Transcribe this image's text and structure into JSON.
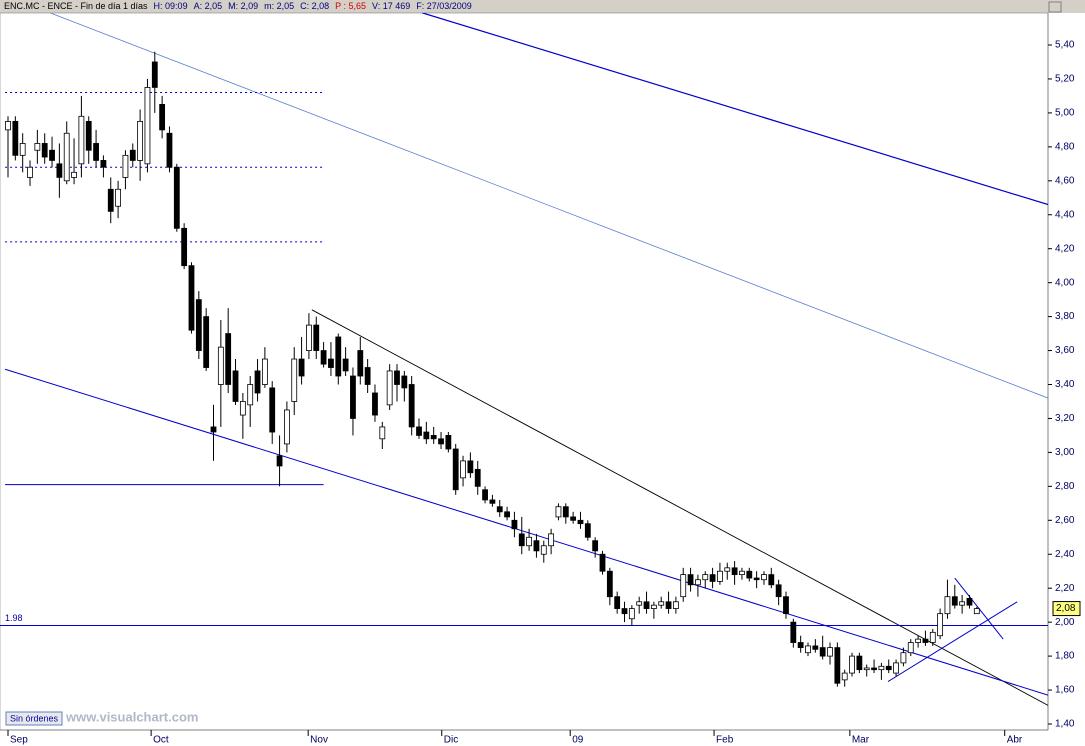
{
  "chart_data": {
    "type": "candlestick",
    "header": [
      {
        "text": "ENC.MC - ENCE - Fin de día 1 días",
        "color": "#000000"
      },
      {
        "text": "H: 09:09",
        "color": "#000080"
      },
      {
        "text": "A: 2,05",
        "color": "#000080"
      },
      {
        "text": "M: 2,09",
        "color": "#000080"
      },
      {
        "text": "m: 2,05",
        "color": "#000080"
      },
      {
        "text": "C: 2,08",
        "color": "#000080"
      },
      {
        "text": "P : 5,65",
        "color": "#d00000"
      },
      {
        "text": "V: 17 469",
        "color": "#000080"
      },
      {
        "text": "F: 27/03/2009",
        "color": "#000080"
      }
    ],
    "ylim": [
      1.3,
      5.5
    ],
    "yticks": [
      {
        "value": 1.4,
        "label": "1,40"
      },
      {
        "value": 1.6,
        "label": "1,60"
      },
      {
        "value": 1.8,
        "label": "1,80"
      },
      {
        "value": 2.0,
        "label": "2,00"
      },
      {
        "value": 2.2,
        "label": "2,20"
      },
      {
        "value": 2.4,
        "label": "2,40"
      },
      {
        "value": 2.6,
        "label": "2,60"
      },
      {
        "value": 2.8,
        "label": "2,80"
      },
      {
        "value": 3.0,
        "label": "3,00"
      },
      {
        "value": 3.2,
        "label": "3,20"
      },
      {
        "value": 3.4,
        "label": "3,40"
      },
      {
        "value": 3.6,
        "label": "3,60"
      },
      {
        "value": 3.8,
        "label": "3,80"
      },
      {
        "value": 4.0,
        "label": "4,00"
      },
      {
        "value": 4.2,
        "label": "4,20"
      },
      {
        "value": 4.4,
        "label": "4,40"
      },
      {
        "value": 4.6,
        "label": "4,60"
      },
      {
        "value": 4.8,
        "label": "4,80"
      },
      {
        "value": 5.0,
        "label": "5,00"
      },
      {
        "value": 5.2,
        "label": "5,20"
      },
      {
        "value": 5.4,
        "label": "5,40"
      }
    ],
    "xlim": [
      -1.09,
      141.7
    ],
    "xticks": [
      {
        "value": 0,
        "label": "Sep"
      },
      {
        "value": 19.5,
        "label": "Oct"
      },
      {
        "value": 40.9,
        "label": "Nov"
      },
      {
        "value": 59.1,
        "label": "Dic"
      },
      {
        "value": 76.6,
        "label": "09"
      },
      {
        "value": 96.2,
        "label": "Feb"
      },
      {
        "value": 114.7,
        "label": "Mar"
      },
      {
        "value": 135.8,
        "label": "Abr"
      }
    ],
    "ohlc": [
      [
        4.9,
        4.98,
        4.62,
        4.95
      ],
      [
        4.95,
        4.98,
        4.72,
        4.75
      ],
      [
        4.75,
        4.88,
        4.65,
        4.82
      ],
      [
        4.62,
        4.72,
        4.57,
        4.68
      ],
      [
        4.78,
        4.9,
        4.7,
        4.82
      ],
      [
        4.82,
        4.88,
        4.7,
        4.74
      ],
      [
        4.78,
        4.86,
        4.68,
        4.72
      ],
      [
        4.7,
        4.82,
        4.5,
        4.62
      ],
      [
        4.6,
        4.95,
        4.58,
        4.88
      ],
      [
        4.62,
        4.85,
        4.58,
        4.65
      ],
      [
        4.7,
        5.1,
        4.62,
        4.98
      ],
      [
        4.95,
        4.98,
        4.7,
        4.78
      ],
      [
        4.82,
        4.9,
        4.68,
        4.72
      ],
      [
        4.72,
        4.75,
        4.62,
        4.68
      ],
      [
        4.55,
        4.62,
        4.35,
        4.42
      ],
      [
        4.45,
        4.6,
        4.38,
        4.55
      ],
      [
        4.62,
        4.78,
        4.55,
        4.75
      ],
      [
        4.78,
        4.82,
        4.68,
        4.72
      ],
      [
        4.72,
        5.02,
        4.6,
        4.95
      ],
      [
        4.7,
        5.2,
        4.65,
        5.15
      ],
      [
        5.3,
        5.36,
        5.0,
        5.15
      ],
      [
        5.05,
        5.1,
        4.85,
        4.9
      ],
      [
        4.88,
        4.92,
        4.65,
        4.68
      ],
      [
        4.68,
        4.7,
        4.3,
        4.32
      ],
      [
        4.32,
        4.35,
        4.08,
        4.1
      ],
      [
        4.1,
        4.12,
        3.7,
        3.72
      ],
      [
        3.9,
        3.95,
        3.55,
        3.6
      ],
      [
        3.8,
        3.85,
        3.48,
        3.5
      ],
      [
        3.15,
        3.28,
        2.95,
        3.12
      ],
      [
        3.4,
        3.78,
        3.15,
        3.62
      ],
      [
        3.7,
        3.85,
        3.35,
        3.4
      ],
      [
        3.48,
        3.55,
        3.28,
        3.3
      ],
      [
        3.22,
        3.35,
        3.08,
        3.3
      ],
      [
        3.28,
        3.45,
        3.15,
        3.4
      ],
      [
        3.48,
        3.55,
        3.3,
        3.35
      ],
      [
        3.4,
        3.62,
        3.38,
        3.55
      ],
      [
        3.38,
        3.42,
        3.05,
        3.12
      ],
      [
        2.98,
        3.1,
        2.8,
        2.92
      ],
      [
        3.05,
        3.3,
        3.0,
        3.25
      ],
      [
        3.3,
        3.62,
        3.22,
        3.55
      ],
      [
        3.55,
        3.68,
        3.4,
        3.45
      ],
      [
        3.6,
        3.82,
        3.55,
        3.75
      ],
      [
        3.75,
        3.8,
        3.55,
        3.6
      ],
      [
        3.6,
        3.65,
        3.5,
        3.52
      ],
      [
        3.55,
        3.65,
        3.45,
        3.5
      ],
      [
        3.68,
        3.7,
        3.4,
        3.45
      ],
      [
        3.55,
        3.62,
        3.45,
        3.48
      ],
      [
        3.45,
        3.5,
        3.1,
        3.2
      ],
      [
        3.6,
        3.68,
        3.4,
        3.45
      ],
      [
        3.5,
        3.55,
        3.35,
        3.4
      ],
      [
        3.35,
        3.4,
        3.18,
        3.22
      ],
      [
        3.08,
        3.18,
        3.02,
        3.15
      ],
      [
        3.28,
        3.52,
        3.25,
        3.48
      ],
      [
        3.48,
        3.52,
        3.3,
        3.4
      ],
      [
        3.45,
        3.48,
        3.3,
        3.38
      ],
      [
        3.4,
        3.45,
        3.1,
        3.15
      ],
      [
        3.15,
        3.2,
        3.08,
        3.1
      ],
      [
        3.12,
        3.18,
        3.05,
        3.08
      ],
      [
        3.1,
        3.15,
        3.05,
        3.08
      ],
      [
        3.08,
        3.12,
        3.02,
        3.05
      ],
      [
        3.1,
        3.12,
        3.0,
        3.02
      ],
      [
        3.02,
        3.05,
        2.75,
        2.78
      ],
      [
        2.85,
        2.98,
        2.8,
        2.95
      ],
      [
        2.95,
        3.0,
        2.85,
        2.88
      ],
      [
        2.9,
        2.95,
        2.75,
        2.8
      ],
      [
        2.78,
        2.8,
        2.7,
        2.72
      ],
      [
        2.72,
        2.75,
        2.68,
        2.7
      ],
      [
        2.68,
        2.72,
        2.62,
        2.65
      ],
      [
        2.65,
        2.68,
        2.6,
        2.62
      ],
      [
        2.6,
        2.65,
        2.5,
        2.55
      ],
      [
        2.52,
        2.62,
        2.4,
        2.45
      ],
      [
        2.45,
        2.55,
        2.42,
        2.5
      ],
      [
        2.48,
        2.52,
        2.38,
        2.42
      ],
      [
        2.4,
        2.48,
        2.35,
        2.45
      ],
      [
        2.45,
        2.55,
        2.4,
        2.52
      ],
      [
        2.62,
        2.7,
        2.6,
        2.68
      ],
      [
        2.68,
        2.7,
        2.58,
        2.62
      ],
      [
        2.62,
        2.65,
        2.58,
        2.6
      ],
      [
        2.6,
        2.65,
        2.55,
        2.58
      ],
      [
        2.58,
        2.6,
        2.48,
        2.5
      ],
      [
        2.48,
        2.5,
        2.38,
        2.42
      ],
      [
        2.4,
        2.42,
        2.28,
        2.3
      ],
      [
        2.3,
        2.32,
        2.1,
        2.15
      ],
      [
        2.15,
        2.18,
        2.05,
        2.08
      ],
      [
        2.08,
        2.12,
        2.0,
        2.05
      ],
      [
        2.02,
        2.1,
        1.98,
        2.08
      ],
      [
        2.1,
        2.15,
        2.05,
        2.12
      ],
      [
        2.12,
        2.18,
        2.05,
        2.08
      ],
      [
        2.08,
        2.12,
        2.02,
        2.1
      ],
      [
        2.1,
        2.15,
        2.08,
        2.12
      ],
      [
        2.12,
        2.18,
        2.05,
        2.08
      ],
      [
        2.08,
        2.15,
        2.05,
        2.12
      ],
      [
        2.15,
        2.32,
        2.12,
        2.28
      ],
      [
        2.28,
        2.32,
        2.18,
        2.22
      ],
      [
        2.22,
        2.28,
        2.15,
        2.25
      ],
      [
        2.25,
        2.3,
        2.2,
        2.28
      ],
      [
        2.28,
        2.32,
        2.2,
        2.24
      ],
      [
        2.24,
        2.35,
        2.22,
        2.3
      ],
      [
        2.3,
        2.35,
        2.25,
        2.32
      ],
      [
        2.32,
        2.36,
        2.22,
        2.28
      ],
      [
        2.28,
        2.32,
        2.25,
        2.3
      ],
      [
        2.3,
        2.32,
        2.24,
        2.26
      ],
      [
        2.26,
        2.3,
        2.2,
        2.25
      ],
      [
        2.25,
        2.3,
        2.22,
        2.28
      ],
      [
        2.28,
        2.32,
        2.2,
        2.22
      ],
      [
        2.22,
        2.25,
        2.1,
        2.15
      ],
      [
        2.15,
        2.18,
        2.02,
        2.05
      ],
      [
        2.0,
        2.02,
        1.85,
        1.88
      ],
      [
        1.88,
        1.92,
        1.82,
        1.85
      ],
      [
        1.82,
        1.88,
        1.8,
        1.86
      ],
      [
        1.86,
        1.9,
        1.82,
        1.84
      ],
      [
        1.85,
        1.92,
        1.78,
        1.8
      ],
      [
        1.8,
        1.88,
        1.75,
        1.85
      ],
      [
        1.85,
        1.88,
        1.62,
        1.64
      ],
      [
        1.66,
        1.72,
        1.62,
        1.7
      ],
      [
        1.7,
        1.82,
        1.68,
        1.8
      ],
      [
        1.8,
        1.82,
        1.7,
        1.72
      ],
      [
        1.72,
        1.75,
        1.68,
        1.73
      ],
      [
        1.73,
        1.78,
        1.7,
        1.72
      ],
      [
        1.72,
        1.76,
        1.66,
        1.74
      ],
      [
        1.74,
        1.78,
        1.7,
        1.72
      ],
      [
        1.7,
        1.78,
        1.68,
        1.76
      ],
      [
        1.76,
        1.85,
        1.74,
        1.82
      ],
      [
        1.82,
        1.9,
        1.8,
        1.88
      ],
      [
        1.88,
        1.92,
        1.85,
        1.9
      ],
      [
        1.9,
        1.95,
        1.86,
        1.88
      ],
      [
        1.88,
        1.96,
        1.86,
        1.94
      ],
      [
        1.92,
        2.08,
        1.9,
        2.05
      ],
      [
        2.05,
        2.25,
        2.02,
        2.15
      ],
      [
        2.15,
        2.22,
        2.08,
        2.1
      ],
      [
        2.1,
        2.16,
        2.05,
        2.12
      ],
      [
        2.14,
        2.16,
        2.08,
        2.1
      ],
      [
        2.05,
        2.09,
        2.05,
        2.08
      ]
    ],
    "lines": [
      {
        "x": [
          56.4,
          141.7
        ],
        "y": [
          5.59,
          4.46
        ],
        "color": "#0000cc",
        "width": 1.2,
        "dash": "none"
      },
      {
        "x": [
          5.7,
          141.7
        ],
        "y": [
          5.59,
          3.32
        ],
        "color": "#5a7fd0",
        "width": 0.8,
        "dash": "none"
      },
      {
        "x": [
          41.4,
          141.7
        ],
        "y": [
          3.84,
          1.51
        ],
        "color": "#000000",
        "width": 0.9,
        "dash": "none"
      },
      {
        "x": [
          -0.4,
          141.7
        ],
        "y": [
          3.49,
          1.57
        ],
        "color": "#0000cc",
        "width": 1,
        "dash": "none"
      },
      {
        "x": [
          119.9,
          137.5
        ],
        "y": [
          1.65,
          2.12
        ],
        "color": "#0000cc",
        "width": 1,
        "dash": "none"
      },
      {
        "x": [
          129,
          135.6
        ],
        "y": [
          2.26,
          1.9
        ],
        "color": "#0000cc",
        "width": 1,
        "dash": "none"
      },
      {
        "x": [
          -0.4,
          43
        ],
        "y": [
          5.12,
          5.12
        ],
        "color": "#0000cc",
        "width": 1,
        "dash": "2 3"
      },
      {
        "x": [
          -0.4,
          43
        ],
        "y": [
          4.68,
          4.68
        ],
        "color": "#0000cc",
        "width": 1,
        "dash": "2 3"
      },
      {
        "x": [
          -0.4,
          43
        ],
        "y": [
          4.24,
          4.24
        ],
        "color": "#0000cc",
        "width": 1,
        "dash": "2 3"
      },
      {
        "x": [
          -0.4,
          43
        ],
        "y": [
          2.81,
          2.81
        ],
        "color": "#0000cc",
        "width": 1,
        "dash": "none"
      },
      {
        "x": [
          -1.09,
          141.7
        ],
        "y": [
          1.98,
          1.98
        ],
        "color": "#0000cc",
        "width": 1,
        "dash": "none"
      }
    ],
    "level_label": {
      "value": 1.98,
      "label": "1.98"
    },
    "last_price": {
      "value": 2.08,
      "label": "2,08"
    },
    "button": "Sin órdenes",
    "watermark": "www.visualchart.com"
  }
}
